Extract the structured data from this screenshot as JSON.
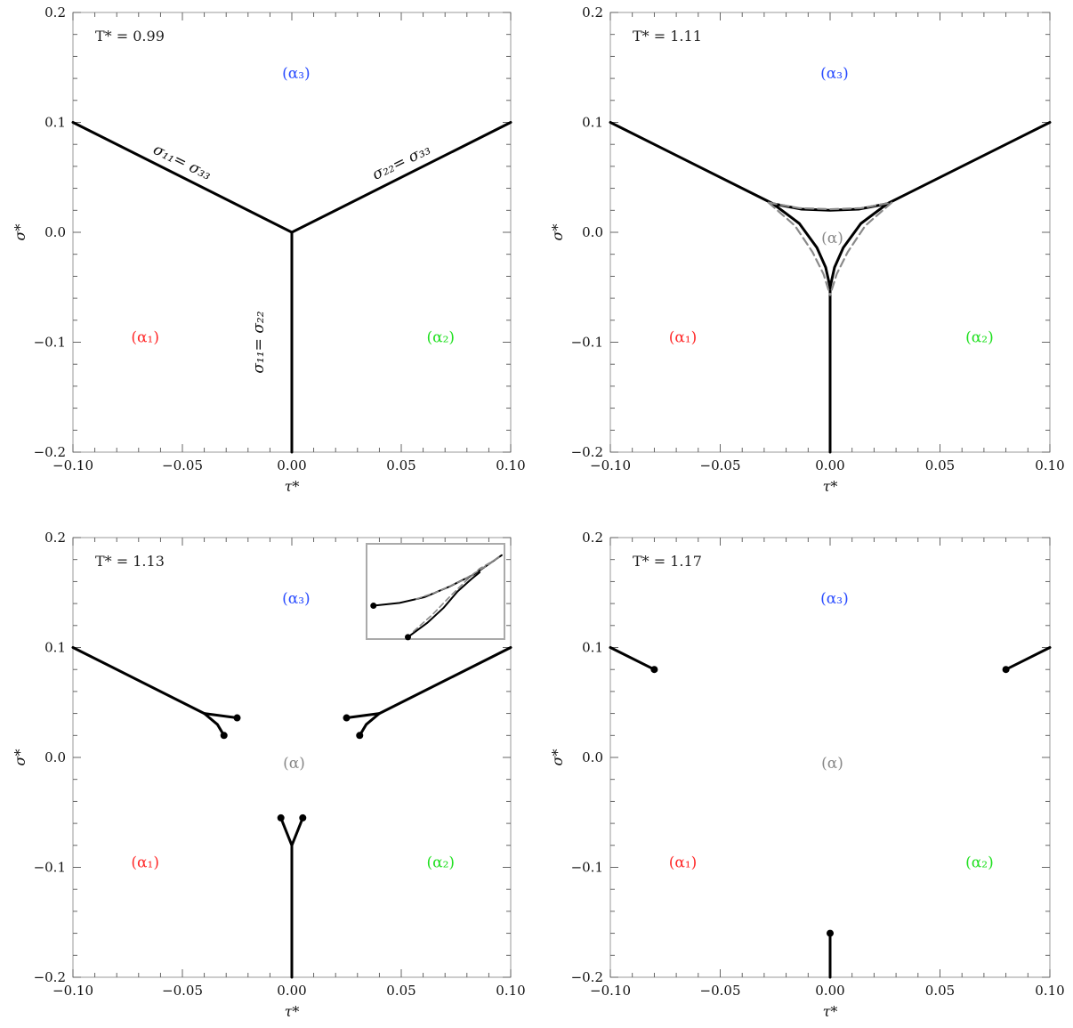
{
  "colors": {
    "alpha1": "#ff2a2a",
    "alpha2": "#22e022",
    "alpha3": "#2a4cff",
    "alpha": "#888888",
    "curve": "#000000",
    "dashed": "#8a8a8a",
    "frame": "#9a9a9a"
  },
  "chart_data": [
    {
      "type": "line",
      "panel": "top-left",
      "title": "",
      "annotation": "T* = 0.99",
      "xlabel": "τ*",
      "ylabel": "σ*",
      "xlim": [
        -0.1,
        0.1
      ],
      "ylim": [
        -0.2,
        0.2
      ],
      "xticks": [
        -0.1,
        -0.05,
        0.0,
        0.05,
        0.1
      ],
      "xtick_labels": [
        "−0.10",
        "−0.05",
        "0.00",
        "0.05",
        "0.10"
      ],
      "yticks": [
        -0.2,
        -0.1,
        0.0,
        0.1,
        0.2
      ],
      "ytick_labels": [
        "−0.2",
        "−0.1",
        "0.0",
        "0.1",
        "0.2"
      ],
      "phase_labels": [
        {
          "text": "(α₃)",
          "x": 0.002,
          "y": 0.145,
          "color": "alpha3"
        },
        {
          "text": "(α₁)",
          "x": -0.067,
          "y": -0.095,
          "color": "alpha1"
        },
        {
          "text": "(α₂)",
          "x": 0.068,
          "y": -0.095,
          "color": "alpha2"
        }
      ],
      "line_labels": [
        {
          "text": "σ₁₁= σ₃₃",
          "x": -0.051,
          "y": 0.06,
          "angle": 26
        },
        {
          "text": "σ₂₂= σ₃₃",
          "x": 0.051,
          "y": 0.06,
          "angle": -26
        },
        {
          "text": "σ₁₁= σ₂₂",
          "x": -0.013,
          "y": -0.1,
          "angle": -90
        }
      ],
      "series": [
        {
          "style": "solid",
          "x": [
            -0.1,
            0.0
          ],
          "y": [
            0.1,
            0.0
          ]
        },
        {
          "style": "solid",
          "x": [
            0.0,
            0.1
          ],
          "y": [
            0.0,
            0.1
          ]
        },
        {
          "style": "solid",
          "x": [
            0.0,
            0.0
          ],
          "y": [
            0.0,
            -0.2
          ]
        }
      ],
      "endpoints": []
    },
    {
      "type": "line",
      "panel": "top-right",
      "title": "",
      "annotation": "T* = 1.11",
      "xlabel": "τ*",
      "ylabel": "σ*",
      "xlim": [
        -0.1,
        0.1
      ],
      "ylim": [
        -0.2,
        0.2
      ],
      "xticks": [
        -0.1,
        -0.05,
        0.0,
        0.05,
        0.1
      ],
      "xtick_labels": [
        "−0.10",
        "−0.05",
        "0.00",
        "0.05",
        "0.10"
      ],
      "yticks": [
        -0.2,
        -0.1,
        0.0,
        0.1,
        0.2
      ],
      "ytick_labels": [
        "−0.2",
        "−0.1",
        "0.0",
        "0.1",
        "0.2"
      ],
      "phase_labels": [
        {
          "text": "(α₃)",
          "x": 0.002,
          "y": 0.145,
          "color": "alpha3"
        },
        {
          "text": "(α₁)",
          "x": -0.067,
          "y": -0.095,
          "color": "alpha1"
        },
        {
          "text": "(α₂)",
          "x": 0.068,
          "y": -0.095,
          "color": "alpha2"
        },
        {
          "text": "(α)",
          "x": 0.001,
          "y": -0.005,
          "color": "alpha"
        }
      ],
      "line_labels": [],
      "series": [
        {
          "style": "solid",
          "x": [
            -0.1,
            -0.026
          ],
          "y": [
            0.1,
            0.026
          ]
        },
        {
          "style": "solid",
          "x": [
            0.026,
            0.1
          ],
          "y": [
            0.026,
            0.1
          ]
        },
        {
          "style": "solid",
          "x": [
            0.0,
            0.0
          ],
          "y": [
            -0.05,
            -0.2
          ]
        },
        {
          "style": "solid",
          "x": [
            -0.026,
            -0.013,
            0.0,
            0.013,
            0.026
          ],
          "y": [
            0.026,
            0.021,
            0.02,
            0.021,
            0.026
          ]
        },
        {
          "style": "solid",
          "x": [
            -0.026,
            -0.014,
            -0.006,
            -0.002,
            0.0
          ],
          "y": [
            0.026,
            0.008,
            -0.014,
            -0.032,
            -0.05
          ]
        },
        {
          "style": "solid",
          "x": [
            0.026,
            0.014,
            0.006,
            0.002,
            0.0
          ],
          "y": [
            0.026,
            0.008,
            -0.014,
            -0.032,
            -0.05
          ]
        },
        {
          "style": "dashed",
          "x": [
            -0.028,
            -0.014,
            0.0,
            0.014,
            0.028
          ],
          "y": [
            0.027,
            0.022,
            0.021,
            0.022,
            0.027
          ]
        },
        {
          "style": "dashed",
          "x": [
            -0.028,
            -0.016,
            -0.008,
            -0.003,
            0.0
          ],
          "y": [
            0.027,
            0.006,
            -0.018,
            -0.038,
            -0.057
          ]
        },
        {
          "style": "dashed",
          "x": [
            0.028,
            0.016,
            0.008,
            0.003,
            0.0
          ],
          "y": [
            0.027,
            0.006,
            -0.018,
            -0.038,
            -0.057
          ]
        }
      ],
      "endpoints": []
    },
    {
      "type": "line",
      "panel": "bottom-left",
      "title": "",
      "annotation": "T* = 1.13",
      "xlabel": "τ*",
      "ylabel": "σ*",
      "xlim": [
        -0.1,
        0.1
      ],
      "ylim": [
        -0.2,
        0.2
      ],
      "xticks": [
        -0.1,
        -0.05,
        0.0,
        0.05,
        0.1
      ],
      "xtick_labels": [
        "−0.10",
        "−0.05",
        "0.00",
        "0.05",
        "0.10"
      ],
      "yticks": [
        -0.2,
        -0.1,
        0.0,
        0.1,
        0.2
      ],
      "ytick_labels": [
        "−0.2",
        "−0.1",
        "0.0",
        "0.1",
        "0.2"
      ],
      "phase_labels": [
        {
          "text": "(α₃)",
          "x": 0.002,
          "y": 0.145,
          "color": "alpha3"
        },
        {
          "text": "(α₁)",
          "x": -0.067,
          "y": -0.095,
          "color": "alpha1"
        },
        {
          "text": "(α₂)",
          "x": 0.068,
          "y": -0.095,
          "color": "alpha2"
        },
        {
          "text": "(α)",
          "x": 0.001,
          "y": -0.005,
          "color": "alpha"
        }
      ],
      "line_labels": [],
      "series": [
        {
          "style": "solid",
          "x": [
            -0.1,
            -0.04
          ],
          "y": [
            0.1,
            0.04
          ]
        },
        {
          "style": "solid",
          "x": [
            -0.04,
            -0.025
          ],
          "y": [
            0.04,
            0.036
          ]
        },
        {
          "style": "solid",
          "x": [
            -0.04,
            -0.034,
            -0.031
          ],
          "y": [
            0.04,
            0.03,
            0.02
          ]
        },
        {
          "style": "solid",
          "x": [
            0.04,
            0.1
          ],
          "y": [
            0.04,
            0.1
          ]
        },
        {
          "style": "solid",
          "x": [
            0.04,
            0.025
          ],
          "y": [
            0.04,
            0.036
          ]
        },
        {
          "style": "solid",
          "x": [
            0.04,
            0.034,
            0.031
          ],
          "y": [
            0.04,
            0.03,
            0.02
          ]
        },
        {
          "style": "solid",
          "x": [
            0.0,
            0.0
          ],
          "y": [
            -0.08,
            -0.2
          ]
        },
        {
          "style": "solid",
          "x": [
            0.0,
            -0.003,
            -0.005
          ],
          "y": [
            -0.08,
            -0.065,
            -0.055
          ]
        },
        {
          "style": "solid",
          "x": [
            0.0,
            0.003,
            0.005
          ],
          "y": [
            -0.08,
            -0.065,
            -0.055
          ]
        }
      ],
      "endpoints": [
        {
          "x": -0.025,
          "y": 0.036
        },
        {
          "x": -0.031,
          "y": 0.02
        },
        {
          "x": 0.025,
          "y": 0.036
        },
        {
          "x": 0.031,
          "y": 0.02
        },
        {
          "x": -0.005,
          "y": -0.055
        },
        {
          "x": 0.005,
          "y": -0.055
        }
      ],
      "inset": {
        "series": [
          {
            "style": "solid",
            "x": [
              0.05,
              0.24,
              0.42,
              0.6,
              0.78,
              0.98
            ],
            "y": [
              0.35,
              0.38,
              0.44,
              0.55,
              0.68,
              0.88
            ]
          },
          {
            "style": "solid",
            "x": [
              0.3,
              0.44,
              0.56,
              0.66,
              0.76,
              0.82
            ],
            "y": [
              0.02,
              0.17,
              0.33,
              0.5,
              0.63,
              0.7
            ]
          },
          {
            "style": "dashed",
            "x": [
              0.34,
              0.48,
              0.6,
              0.72,
              0.82,
              0.94
            ],
            "y": [
              0.08,
              0.26,
              0.44,
              0.61,
              0.74,
              0.84
            ]
          },
          {
            "style": "dashed",
            "x": [
              0.36,
              0.52,
              0.7,
              0.86,
              0.96
            ],
            "y": [
              0.42,
              0.5,
              0.62,
              0.76,
              0.86
            ]
          }
        ],
        "endpoints": [
          {
            "x": 0.05,
            "y": 0.35
          },
          {
            "x": 0.3,
            "y": 0.02
          }
        ]
      }
    },
    {
      "type": "line",
      "panel": "bottom-right",
      "title": "",
      "annotation": "T* = 1.17",
      "xlabel": "τ*",
      "ylabel": "σ*",
      "xlim": [
        -0.1,
        0.1
      ],
      "ylim": [
        -0.2,
        0.2
      ],
      "xticks": [
        -0.1,
        -0.05,
        0.0,
        0.05,
        0.1
      ],
      "xtick_labels": [
        "−0.10",
        "−0.05",
        "0.00",
        "0.05",
        "0.10"
      ],
      "yticks": [
        -0.2,
        -0.1,
        0.0,
        0.1,
        0.2
      ],
      "ytick_labels": [
        "−0.2",
        "−0.1",
        "0.0",
        "0.1",
        "0.2"
      ],
      "phase_labels": [
        {
          "text": "(α₃)",
          "x": 0.002,
          "y": 0.145,
          "color": "alpha3"
        },
        {
          "text": "(α₁)",
          "x": -0.067,
          "y": -0.095,
          "color": "alpha1"
        },
        {
          "text": "(α₂)",
          "x": 0.068,
          "y": -0.095,
          "color": "alpha2"
        },
        {
          "text": "(α)",
          "x": 0.001,
          "y": -0.005,
          "color": "alpha"
        }
      ],
      "line_labels": [],
      "series": [
        {
          "style": "solid",
          "x": [
            -0.1,
            -0.08
          ],
          "y": [
            0.1,
            0.08
          ]
        },
        {
          "style": "solid",
          "x": [
            0.08,
            0.1
          ],
          "y": [
            0.08,
            0.1
          ]
        },
        {
          "style": "solid",
          "x": [
            0.0,
            0.0
          ],
          "y": [
            -0.16,
            -0.2
          ]
        }
      ],
      "endpoints": [
        {
          "x": -0.08,
          "y": 0.08
        },
        {
          "x": 0.08,
          "y": 0.08
        },
        {
          "x": 0.0,
          "y": -0.16
        }
      ]
    }
  ]
}
